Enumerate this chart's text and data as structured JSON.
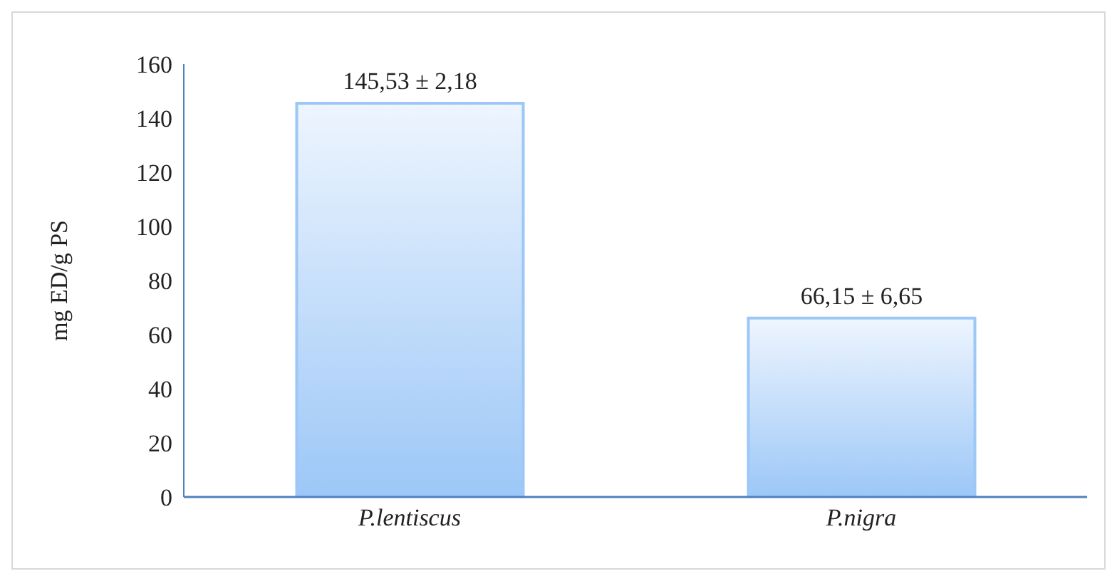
{
  "chart_data": {
    "type": "bar",
    "ylabel": "mg ED/g PS",
    "categories": [
      "P.lentiscus",
      "P.nigra"
    ],
    "values": [
      145.53,
      66.15
    ],
    "value_labels": [
      "145,53 ± 2,18",
      "66,15 ± 6,65"
    ],
    "color": "#9cc7f7",
    "ylim": [
      0,
      160
    ],
    "yticks": [
      0,
      20,
      40,
      60,
      80,
      100,
      120,
      140,
      160
    ],
    "grid": false,
    "legend": false
  }
}
